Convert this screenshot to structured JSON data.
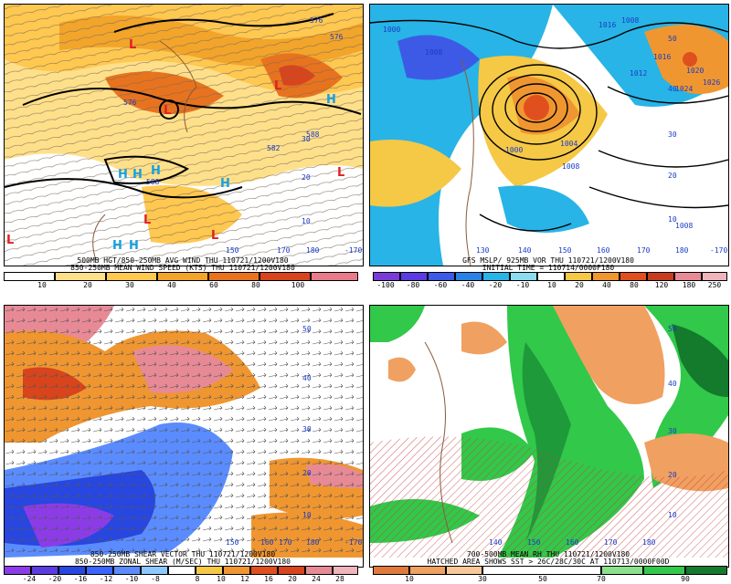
{
  "panels": [
    {
      "id": "wind",
      "caption_line1": "500MB HGT/850-250MB AVG WIND THU 110721/1200V180",
      "caption_line2": "850-250MB MEAN WIND SPEED (KTS) THU 110721/1200V180",
      "colorbar_ticks": [
        "10",
        "20",
        "30",
        "40",
        "60",
        "80",
        "100"
      ],
      "contour_labels": [
        "576",
        "582",
        "588",
        "576",
        "588",
        "576"
      ],
      "high_low_marks": [
        "L",
        "L",
        "L",
        "L",
        "L",
        "H",
        "H",
        "H",
        "H",
        "H",
        "H",
        "H",
        "L",
        "L"
      ],
      "lon_labels": [
        "150",
        "170",
        "180",
        "-170"
      ],
      "lat_labels": [
        "30",
        "20",
        "10"
      ],
      "colors": {
        "c1": "#ffe08a",
        "c2": "#ffc850",
        "c3": "#f2a52a",
        "c4": "#e8731e",
        "c5": "#d8441c",
        "c6": "#e87a8a"
      }
    },
    {
      "id": "mslp",
      "caption_line1": "GFS MSLP/ 925MB VOR THU 110721/1200V180",
      "caption_line2": "INITIAL TIME = 110714/0000F180",
      "colorbar_ticks": [
        "-100",
        "-80",
        "-60",
        "-40",
        "-20",
        "-10",
        "10",
        "20",
        "40",
        "80",
        "120",
        "180",
        "250"
      ],
      "contour_labels": [
        "1000",
        "1008",
        "1016",
        "1000",
        "1004",
        "1008",
        "1008",
        "1012",
        "1016",
        "1020",
        "1024",
        "1026",
        "1008"
      ],
      "lon_labels": [
        "130",
        "140",
        "150",
        "160",
        "170",
        "180",
        "-170"
      ],
      "lat_labels": [
        "50",
        "40",
        "30",
        "20",
        "10"
      ],
      "colors": {
        "neg3": "#7a3cd8",
        "neg2": "#3c5ae6",
        "neg1": "#28b4e6",
        "pos1": "#f5c846",
        "pos2": "#f09630",
        "pos3": "#e0501e"
      }
    },
    {
      "id": "shear",
      "caption_line1": "850-250MB SHEAR VECTOR THU 110721/1200V180",
      "caption_line2": "850-250MB ZONAL SHEAR (M/SEC) THU 110721/1200V180",
      "colorbar_ticks": [
        "-24",
        "-20",
        "-16",
        "-12",
        "-10",
        "-8",
        "8",
        "10",
        "12",
        "16",
        "20",
        "24",
        "28"
      ],
      "lon_labels": [
        "150",
        "160",
        "170",
        "180",
        "-170"
      ],
      "lat_labels": [
        "50",
        "40",
        "30",
        "20",
        "10"
      ],
      "colors": {
        "pur": "#8c3ce6",
        "blu": "#2846e0",
        "lbl": "#5a8cff",
        "org": "#f09630",
        "red": "#d8441c",
        "pnk": "#e88a96"
      }
    },
    {
      "id": "rh",
      "caption_line1": "700-500MB MEAN RH THU 110721/1200V180",
      "caption_line2": "HATCHED AREA SHOWS SST > 26C/28C/30C AT 110713/0000F00D",
      "colorbar_ticks": [
        "10",
        "30",
        "50",
        "70",
        "90"
      ],
      "lon_labels": [
        "140",
        "150",
        "160",
        "170",
        "180"
      ],
      "lat_labels": [
        "50",
        "40",
        "30",
        "20",
        "10"
      ],
      "colors": {
        "dry": "#f0a060",
        "wet1": "#32c84a",
        "wet2": "#1e9a3a",
        "wet3": "#147a2c",
        "hatch": "#c83c3c"
      }
    }
  ]
}
